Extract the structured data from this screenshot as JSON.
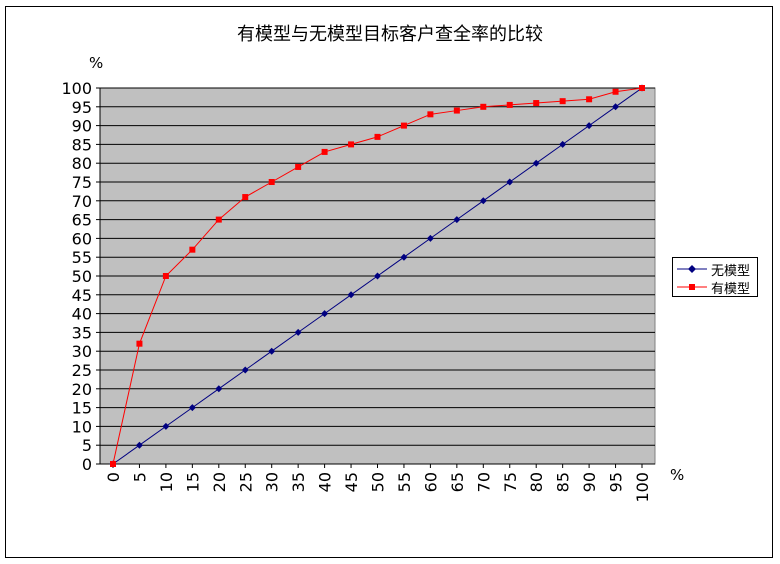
{
  "chart_data": {
    "type": "line",
    "title": "有模型与无模型目标客户查全率的比较",
    "ylabel": "%",
    "xlabel": "%",
    "x": [
      0,
      5,
      10,
      15,
      20,
      25,
      30,
      35,
      40,
      45,
      50,
      55,
      60,
      65,
      70,
      75,
      80,
      85,
      90,
      95,
      100
    ],
    "ylim": [
      0,
      100
    ],
    "yticks": [
      0,
      5,
      10,
      15,
      20,
      25,
      30,
      35,
      40,
      45,
      50,
      55,
      60,
      65,
      70,
      75,
      80,
      85,
      90,
      95,
      100
    ],
    "grid": "horizontal",
    "legend_position": "right",
    "plot_background": "#c0c0c0",
    "series": [
      {
        "name": "无模型",
        "color": "#000080",
        "marker": "diamond",
        "values": [
          0,
          5,
          10,
          15,
          20,
          25,
          30,
          35,
          40,
          45,
          50,
          55,
          60,
          65,
          70,
          75,
          80,
          85,
          90,
          95,
          100
        ]
      },
      {
        "name": "有模型",
        "color": "#ff0000",
        "marker": "square",
        "values": [
          0,
          32,
          50,
          57,
          65,
          71,
          75,
          79,
          83,
          85,
          87,
          90,
          93,
          94,
          95,
          95.5,
          96,
          96.5,
          97,
          99,
          100
        ]
      }
    ]
  }
}
